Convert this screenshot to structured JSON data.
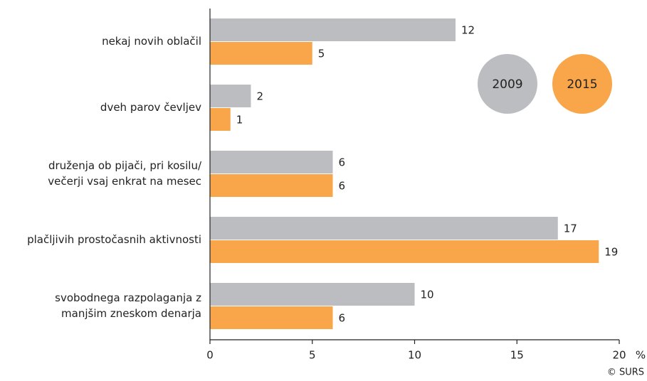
{
  "chart_data": {
    "type": "bar",
    "orientation": "horizontal",
    "categories": [
      "nekaj novih oblačil",
      "dveh parov čevljev",
      "druženja ob pijači, pri kosilu/\nvečerji vsaj enkrat na mesec",
      "plačljivih prostočasnih aktivnosti",
      "svobodnega razpolaganja z\nmanjšim zneskom denarja"
    ],
    "series": [
      {
        "name": "2009",
        "color": "#bcbdc0",
        "values": [
          12,
          2,
          6,
          17,
          10
        ]
      },
      {
        "name": "2015",
        "color": "#f9a54a",
        "values": [
          5,
          1,
          6,
          19,
          6
        ]
      }
    ],
    "xlim": [
      0,
      20
    ],
    "xticks": [
      0,
      5,
      10,
      15,
      20
    ],
    "unit": "%",
    "source": "© SURS"
  }
}
